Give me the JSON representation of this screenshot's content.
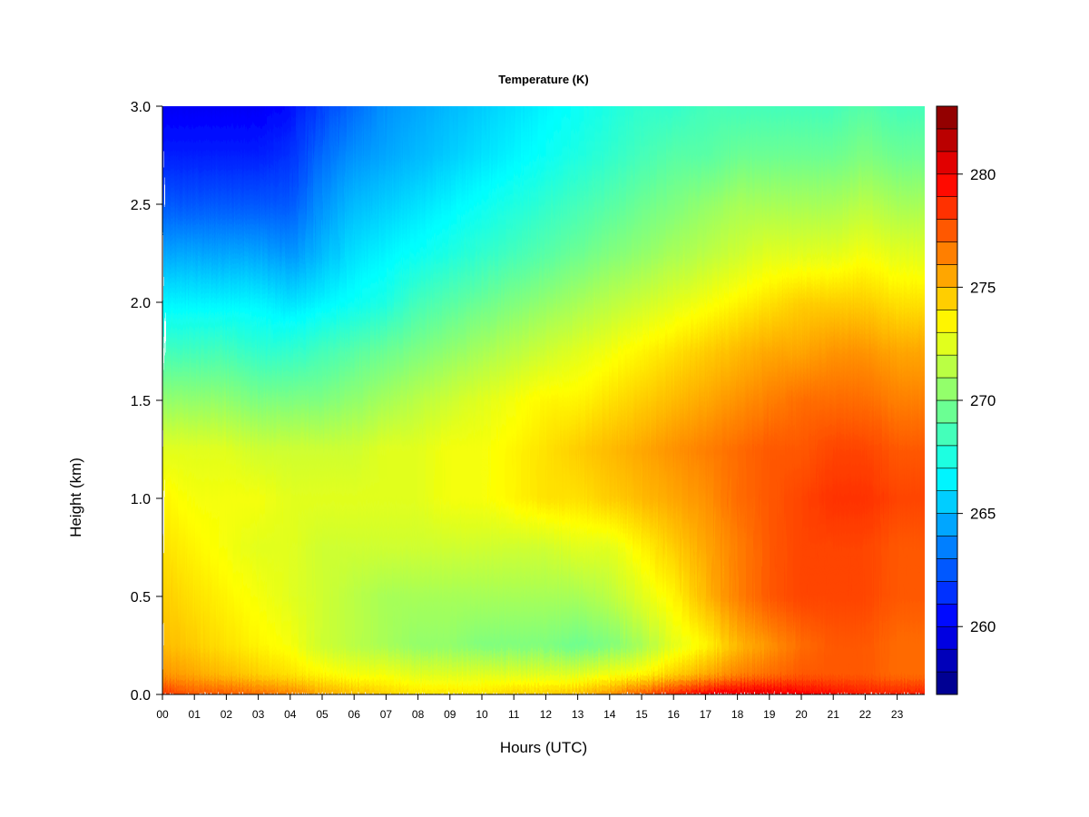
{
  "chart_data": {
    "type": "heatmap",
    "title": "Temperature (K)",
    "xlabel": "Hours (UTC)",
    "ylabel": "Height (km)",
    "x_ticks": [
      "00",
      "01",
      "02",
      "03",
      "04",
      "05",
      "06",
      "07",
      "08",
      "09",
      "10",
      "11",
      "12",
      "13",
      "14",
      "15",
      "16",
      "17",
      "18",
      "19",
      "20",
      "21",
      "22",
      "23"
    ],
    "y_ticks": [
      "0.0",
      "0.5",
      "1.0",
      "1.5",
      "2.0",
      "2.5",
      "3.0"
    ],
    "xlim": [
      0,
      23.85
    ],
    "ylim": [
      0,
      3.0
    ],
    "colorbar": {
      "ticks": [
        "260",
        "265",
        "270",
        "275",
        "280"
      ],
      "range": [
        257,
        283
      ],
      "levels": 26,
      "colormap": [
        "#00007f",
        "#0000ff",
        "#007fff",
        "#00ffff",
        "#7fff7f",
        "#ffff00",
        "#ff7f00",
        "#ff0000",
        "#7f0000"
      ]
    },
    "height_levels_km": [
      0.0,
      0.1,
      0.25,
      0.5,
      0.75,
      1.0,
      1.25,
      1.5,
      1.75,
      2.0,
      2.25,
      2.5,
      2.75,
      3.0
    ],
    "hour_columns": [
      0,
      1,
      2,
      3,
      4,
      5,
      6,
      7,
      8,
      9,
      10,
      11,
      12,
      13,
      14,
      15,
      16,
      17,
      18,
      19,
      20,
      21,
      22,
      23,
      24
    ],
    "temperature_K": [
      [
        278.5,
        277.5,
        277.5,
        277,
        276.5,
        275.5,
        275,
        274.5,
        274,
        274,
        274,
        274.5,
        274.5,
        275,
        276,
        277.5,
        279,
        280,
        280.5,
        280.5,
        280,
        279.5,
        279,
        279,
        279
      ],
      [
        276,
        275.5,
        275,
        274.5,
        274,
        273.5,
        273,
        273,
        272.5,
        272.5,
        272.5,
        272.5,
        272.5,
        272.5,
        273,
        273.5,
        274.5,
        275.5,
        276.5,
        277,
        277.5,
        277.5,
        277.5,
        277,
        277
      ],
      [
        275,
        274.5,
        274,
        273.5,
        273,
        272,
        271.5,
        271,
        270.5,
        270.5,
        270,
        270,
        270,
        269.5,
        270,
        271,
        272.5,
        273.5,
        275,
        276,
        277,
        277.5,
        277.5,
        277,
        277
      ],
      [
        274.5,
        274,
        273.5,
        273,
        272.5,
        272,
        271.5,
        271,
        271,
        271,
        271,
        271,
        271,
        271,
        271.5,
        272.5,
        273.5,
        275,
        276.5,
        277.5,
        278,
        278,
        278,
        277.5,
        277.5
      ],
      [
        274,
        273.5,
        273,
        272.5,
        272.5,
        272,
        272,
        272,
        272,
        272,
        272,
        272,
        272,
        272.5,
        272.5,
        273.5,
        274.5,
        275.5,
        276.5,
        277.5,
        278,
        278,
        278,
        277.5,
        277.5
      ],
      [
        273.5,
        273,
        273,
        273,
        272.5,
        272.5,
        272.5,
        272.5,
        272.5,
        273,
        273,
        273.5,
        274,
        274,
        274.5,
        275,
        275.5,
        276,
        277,
        277.5,
        278,
        278.5,
        278.5,
        278,
        278
      ],
      [
        272.5,
        272.5,
        272.5,
        272,
        272,
        272,
        272,
        272.5,
        272.5,
        273,
        273,
        273.5,
        274,
        274.5,
        275,
        275.5,
        276,
        276.5,
        277,
        277.5,
        277.5,
        278,
        278,
        277.5,
        277.5
      ],
      [
        270.5,
        270.5,
        270.5,
        270,
        270,
        270,
        270.5,
        271,
        271.5,
        272,
        272.5,
        273,
        273.5,
        273.5,
        274,
        274.5,
        275,
        275.5,
        276,
        276.5,
        277,
        277,
        277,
        276.5,
        276.5
      ],
      [
        268.5,
        268.5,
        268.5,
        268,
        268,
        268.5,
        269,
        269.5,
        270,
        270.5,
        271,
        271.5,
        272,
        272.5,
        273,
        273.5,
        274,
        274.5,
        275,
        275.5,
        275.5,
        276,
        276,
        275.5,
        275.5
      ],
      [
        266.5,
        266.5,
        266.5,
        266.5,
        266,
        266.5,
        267,
        267.5,
        268.5,
        269,
        269.5,
        270,
        270.5,
        271,
        271.5,
        272,
        272.5,
        273,
        273.5,
        274,
        274.5,
        274.5,
        274.5,
        274,
        274
      ],
      [
        264.5,
        264.5,
        264.5,
        264.5,
        264,
        265,
        266,
        266.5,
        267,
        267.5,
        268,
        268.5,
        269,
        269.5,
        270,
        270.5,
        271,
        271.5,
        272,
        272.5,
        272.5,
        272.5,
        273,
        272.5,
        272.5
      ],
      [
        262.5,
        262.5,
        262.5,
        262.5,
        262.5,
        264,
        265,
        265.5,
        266,
        266.5,
        267,
        267.5,
        268,
        268.5,
        269,
        269.5,
        270,
        270.5,
        271,
        271,
        271,
        271,
        271.5,
        271,
        271
      ],
      [
        261,
        261,
        261,
        261,
        261.5,
        263,
        264,
        264.5,
        265,
        265.5,
        266,
        266.5,
        267,
        267.5,
        268,
        268.5,
        269,
        269,
        269.5,
        269.5,
        269.5,
        269.5,
        270,
        269.5,
        269.5
      ],
      [
        260,
        260,
        260,
        260,
        260.5,
        262,
        263,
        264,
        264.5,
        265,
        265.5,
        266,
        266.5,
        267,
        267.5,
        268,
        268,
        268.5,
        268.5,
        268.5,
        268.5,
        268.5,
        269,
        268.5,
        268.5
      ]
    ]
  }
}
